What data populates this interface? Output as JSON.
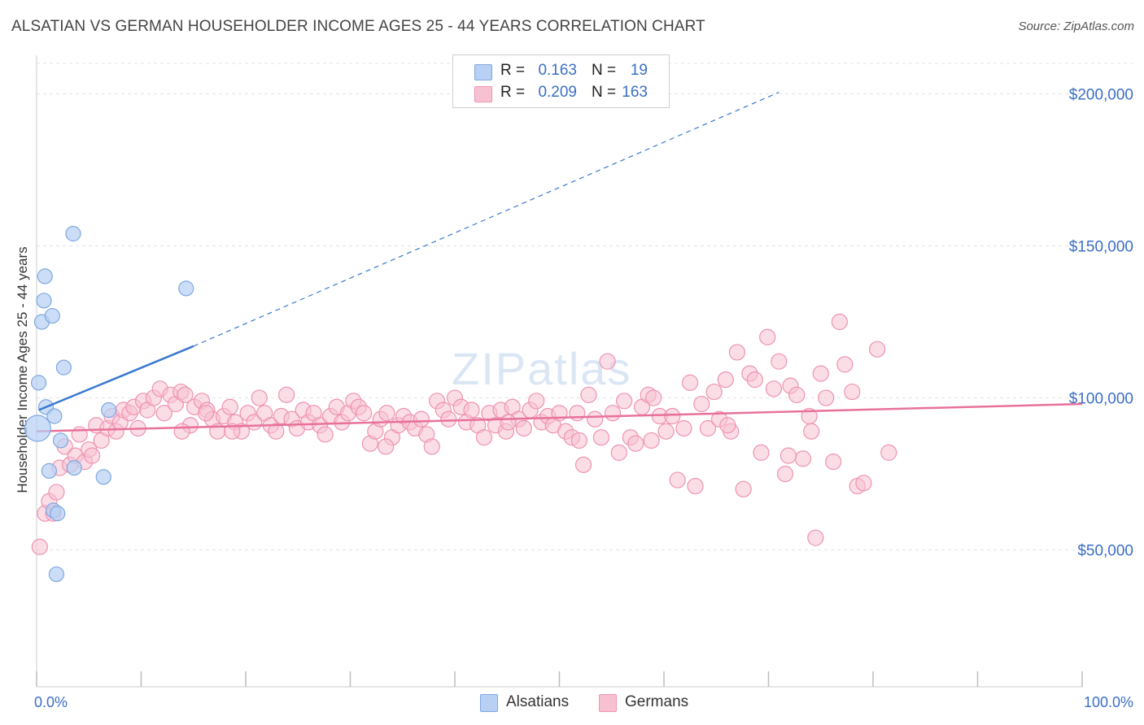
{
  "title": "ALSATIAN VS GERMAN HOUSEHOLDER INCOME AGES 25 - 44 YEARS CORRELATION CHART",
  "source": "Source: ZipAtlas.com",
  "watermark": {
    "main": "ZIP",
    "sub": "atlas"
  },
  "colors": {
    "alsatian_fill": "#b7d0f3",
    "alsatian_stroke": "#7fa7e0",
    "alsatian_line": "#3a78d0",
    "german_fill": "#f7c1d2",
    "german_stroke": "#ee93b1",
    "german_line": "#e8719a",
    "grid": "#e3e3e3",
    "axis_text": "#3b6fc4"
  },
  "legend": {
    "rows": [
      {
        "r_label": "R =",
        "r_value": "0.163",
        "n_label": "N =",
        "n_value": "19"
      },
      {
        "r_label": "R =",
        "r_value": "0.209",
        "n_label": "N =",
        "n_value": "163"
      }
    ]
  },
  "bottom_legend": {
    "alsatians": "Alsatians",
    "germans": "Germans"
  },
  "chart_data": {
    "type": "scatter",
    "title": "ALSATIAN VS GERMAN HOUSEHOLDER INCOME AGES 25 - 44 YEARS CORRELATION CHART",
    "xlabel": "",
    "ylabel": "Householder Income Ages 25 - 44 years",
    "xlim": [
      0,
      100
    ],
    "ylim": [
      5000,
      210000
    ],
    "x_tick_labels": [
      "0.0%",
      "100.0%"
    ],
    "y_ticks": [
      50000,
      100000,
      150000,
      200000
    ],
    "y_tick_labels": [
      "$50,000",
      "$100,000",
      "$150,000",
      "$200,000"
    ],
    "grid": true,
    "legend_position": "top-center",
    "series": [
      {
        "name": "Alsatians",
        "R": 0.163,
        "N": 19,
        "trend": {
          "x0": 0.2,
          "y0": 96000,
          "x1": 15.0,
          "y1": 117000,
          "dashed_to_x": 71.0,
          "dashed_to_y": 200500
        },
        "points": [
          [
            0.1,
            90000,
            16
          ],
          [
            0.2,
            105000,
            9
          ],
          [
            0.5,
            125000,
            9
          ],
          [
            0.7,
            132000,
            9
          ],
          [
            0.8,
            140000,
            9
          ],
          [
            0.9,
            97000,
            9
          ],
          [
            1.2,
            76000,
            9
          ],
          [
            1.5,
            127000,
            9
          ],
          [
            1.6,
            63000,
            9
          ],
          [
            1.7,
            94000,
            9
          ],
          [
            1.9,
            42000,
            9
          ],
          [
            2.0,
            62000,
            9
          ],
          [
            2.3,
            86000,
            9
          ],
          [
            2.6,
            110000,
            9
          ],
          [
            3.5,
            154000,
            9
          ],
          [
            3.6,
            77000,
            9
          ],
          [
            6.4,
            74000,
            9
          ],
          [
            6.9,
            96000,
            9
          ],
          [
            14.3,
            136000,
            9
          ]
        ]
      },
      {
        "name": "Germans",
        "R": 0.209,
        "N": 163,
        "trend": {
          "x0": 0.0,
          "y0": 89000,
          "x1": 100.0,
          "y1": 98000
        },
        "points": [
          [
            0.3,
            51000
          ],
          [
            0.8,
            62000
          ],
          [
            1.2,
            66000
          ],
          [
            1.6,
            62000
          ],
          [
            1.9,
            69000
          ],
          [
            2.2,
            77000
          ],
          [
            2.7,
            84000
          ],
          [
            3.2,
            78000
          ],
          [
            3.7,
            81000
          ],
          [
            4.1,
            88000
          ],
          [
            4.6,
            79000
          ],
          [
            5.0,
            83000
          ],
          [
            5.3,
            81000
          ],
          [
            5.7,
            91000
          ],
          [
            6.2,
            86000
          ],
          [
            6.8,
            90000
          ],
          [
            7.2,
            94000
          ],
          [
            7.6,
            89000
          ],
          [
            8.0,
            92000
          ],
          [
            8.3,
            96000
          ],
          [
            8.9,
            95000
          ],
          [
            9.3,
            97000
          ],
          [
            9.7,
            90000
          ],
          [
            10.2,
            99000
          ],
          [
            10.6,
            96000
          ],
          [
            11.2,
            100000
          ],
          [
            11.8,
            103000
          ],
          [
            12.2,
            95000
          ],
          [
            12.8,
            101000
          ],
          [
            13.3,
            98000
          ],
          [
            13.8,
            102000
          ],
          [
            14.2,
            101000
          ],
          [
            14.7,
            91000
          ],
          [
            15.1,
            97000
          ],
          [
            15.8,
            99000
          ],
          [
            16.3,
            96000
          ],
          [
            16.8,
            93000
          ],
          [
            17.3,
            89000
          ],
          [
            17.9,
            94000
          ],
          [
            18.5,
            97000
          ],
          [
            19.0,
            92000
          ],
          [
            19.6,
            89000
          ],
          [
            20.2,
            95000
          ],
          [
            20.8,
            92000
          ],
          [
            21.3,
            100000
          ],
          [
            21.8,
            95000
          ],
          [
            22.4,
            91000
          ],
          [
            22.9,
            89000
          ],
          [
            23.4,
            94000
          ],
          [
            23.9,
            101000
          ],
          [
            24.4,
            93000
          ],
          [
            24.9,
            90000
          ],
          [
            25.5,
            96000
          ],
          [
            26.0,
            92000
          ],
          [
            26.5,
            95000
          ],
          [
            27.1,
            91000
          ],
          [
            27.6,
            88000
          ],
          [
            28.1,
            94000
          ],
          [
            28.7,
            97000
          ],
          [
            29.2,
            92000
          ],
          [
            29.8,
            95000
          ],
          [
            30.3,
            99000
          ],
          [
            30.8,
            97000
          ],
          [
            31.3,
            95000
          ],
          [
            31.9,
            85000
          ],
          [
            32.4,
            89000
          ],
          [
            32.9,
            93000
          ],
          [
            33.5,
            95000
          ],
          [
            34.0,
            87000
          ],
          [
            34.6,
            91000
          ],
          [
            35.1,
            94000
          ],
          [
            35.7,
            92000
          ],
          [
            36.2,
            90000
          ],
          [
            36.8,
            93000
          ],
          [
            37.3,
            88000
          ],
          [
            37.8,
            84000
          ],
          [
            38.3,
            99000
          ],
          [
            38.9,
            96000
          ],
          [
            39.4,
            93000
          ],
          [
            40.0,
            100000
          ],
          [
            40.6,
            97000
          ],
          [
            41.1,
            92000
          ],
          [
            41.6,
            96000
          ],
          [
            42.2,
            91000
          ],
          [
            42.8,
            87000
          ],
          [
            43.3,
            95000
          ],
          [
            43.9,
            91000
          ],
          [
            44.4,
            96000
          ],
          [
            44.9,
            89000
          ],
          [
            45.5,
            97000
          ],
          [
            46.1,
            93000
          ],
          [
            46.6,
            90000
          ],
          [
            47.2,
            96000
          ],
          [
            47.8,
            99000
          ],
          [
            48.3,
            92000
          ],
          [
            48.9,
            94000
          ],
          [
            49.4,
            91000
          ],
          [
            50.0,
            95000
          ],
          [
            50.6,
            89000
          ],
          [
            51.2,
            87000
          ],
          [
            51.7,
            95000
          ],
          [
            52.3,
            78000
          ],
          [
            52.8,
            101000
          ],
          [
            53.4,
            93000
          ],
          [
            54.0,
            87000
          ],
          [
            54.6,
            112000
          ],
          [
            55.1,
            95000
          ],
          [
            55.7,
            82000
          ],
          [
            56.2,
            99000
          ],
          [
            56.8,
            87000
          ],
          [
            57.3,
            85000
          ],
          [
            57.9,
            97000
          ],
          [
            58.5,
            101000
          ],
          [
            59.0,
            100000
          ],
          [
            59.6,
            94000
          ],
          [
            60.2,
            89000
          ],
          [
            60.8,
            94000
          ],
          [
            61.3,
            73000
          ],
          [
            61.9,
            90000
          ],
          [
            62.5,
            105000
          ],
          [
            63.0,
            71000
          ],
          [
            63.6,
            98000
          ],
          [
            64.2,
            90000
          ],
          [
            64.8,
            102000
          ],
          [
            65.3,
            93000
          ],
          [
            65.9,
            106000
          ],
          [
            66.4,
            89000
          ],
          [
            67.0,
            115000
          ],
          [
            67.6,
            70000
          ],
          [
            68.2,
            108000
          ],
          [
            68.7,
            106000
          ],
          [
            69.3,
            82000
          ],
          [
            69.9,
            120000
          ],
          [
            70.5,
            103000
          ],
          [
            71.0,
            112000
          ],
          [
            71.6,
            75000
          ],
          [
            72.1,
            104000
          ],
          [
            72.7,
            101000
          ],
          [
            73.3,
            80000
          ],
          [
            73.9,
            94000
          ],
          [
            74.5,
            54000
          ],
          [
            75.0,
            108000
          ],
          [
            75.5,
            100000
          ],
          [
            76.2,
            79000
          ],
          [
            76.8,
            125000
          ],
          [
            77.3,
            111000
          ],
          [
            78.0,
            102000
          ],
          [
            78.5,
            71000
          ],
          [
            79.1,
            72000
          ],
          [
            80.4,
            116000
          ],
          [
            81.5,
            82000
          ],
          [
            13.9,
            89000
          ],
          [
            16.2,
            95000
          ],
          [
            18.7,
            89000
          ],
          [
            33.4,
            84000
          ],
          [
            45.1,
            92000
          ],
          [
            51.9,
            86000
          ],
          [
            58.8,
            86000
          ],
          [
            66.1,
            91000
          ],
          [
            71.9,
            81000
          ],
          [
            74.1,
            89000
          ]
        ]
      }
    ]
  }
}
